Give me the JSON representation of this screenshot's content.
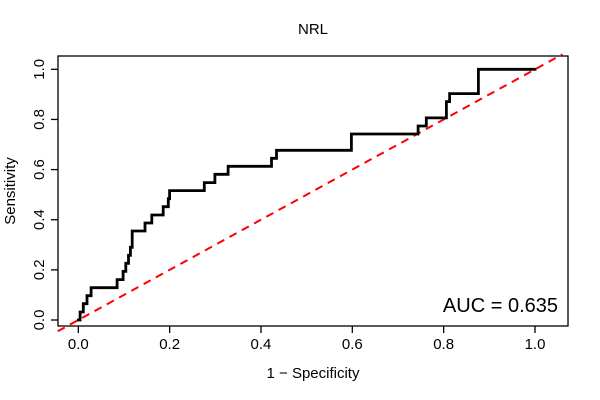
{
  "chart_data": {
    "type": "line",
    "subtype": "roc-step-curve",
    "title": "NRL",
    "xlabel": "1 − Specificity",
    "ylabel": "Sensitivity",
    "xlim": [
      0,
      1
    ],
    "ylim": [
      0,
      1
    ],
    "xticks": [
      0.0,
      0.2,
      0.4,
      0.6,
      0.8,
      1.0
    ],
    "yticks": [
      0.0,
      0.2,
      0.4,
      0.6,
      0.8,
      1.0
    ],
    "xtick_labels": [
      "0.0",
      "0.2",
      "0.4",
      "0.6",
      "0.8",
      "1.0"
    ],
    "ytick_labels": [
      "0.0",
      "0.2",
      "0.4",
      "0.6",
      "0.8",
      "1.0"
    ],
    "grid": false,
    "legend": "none",
    "annotation": "AUC = 0.635",
    "auc": 0.635,
    "series": [
      {
        "name": "ROC curve (NRL)",
        "color": "#000000",
        "style": "solid-step",
        "step_points": [
          [
            0.0,
            0.0
          ],
          [
            0.004,
            0.032
          ],
          [
            0.011,
            0.065
          ],
          [
            0.019,
            0.097
          ],
          [
            0.028,
            0.129
          ],
          [
            0.085,
            0.161
          ],
          [
            0.098,
            0.194
          ],
          [
            0.104,
            0.226
          ],
          [
            0.11,
            0.258
          ],
          [
            0.114,
            0.29
          ],
          [
            0.118,
            0.355
          ],
          [
            0.146,
            0.387
          ],
          [
            0.161,
            0.419
          ],
          [
            0.186,
            0.452
          ],
          [
            0.197,
            0.484
          ],
          [
            0.2,
            0.516
          ],
          [
            0.276,
            0.548
          ],
          [
            0.299,
            0.581
          ],
          [
            0.328,
            0.613
          ],
          [
            0.423,
            0.645
          ],
          [
            0.434,
            0.677
          ],
          [
            0.598,
            0.742
          ],
          [
            0.744,
            0.774
          ],
          [
            0.762,
            0.806
          ],
          [
            0.806,
            0.871
          ],
          [
            0.813,
            0.903
          ],
          [
            0.876,
            1.0
          ],
          [
            1.0,
            1.0
          ]
        ]
      },
      {
        "name": "chance diagonal",
        "color": "#FF0000",
        "style": "dashed",
        "from": [
          0,
          0
        ],
        "to": [
          1,
          1
        ]
      }
    ],
    "colors": {
      "curve": "#000000",
      "reference": "#FF0000",
      "axis": "#000000",
      "background": "#ffffff"
    }
  }
}
